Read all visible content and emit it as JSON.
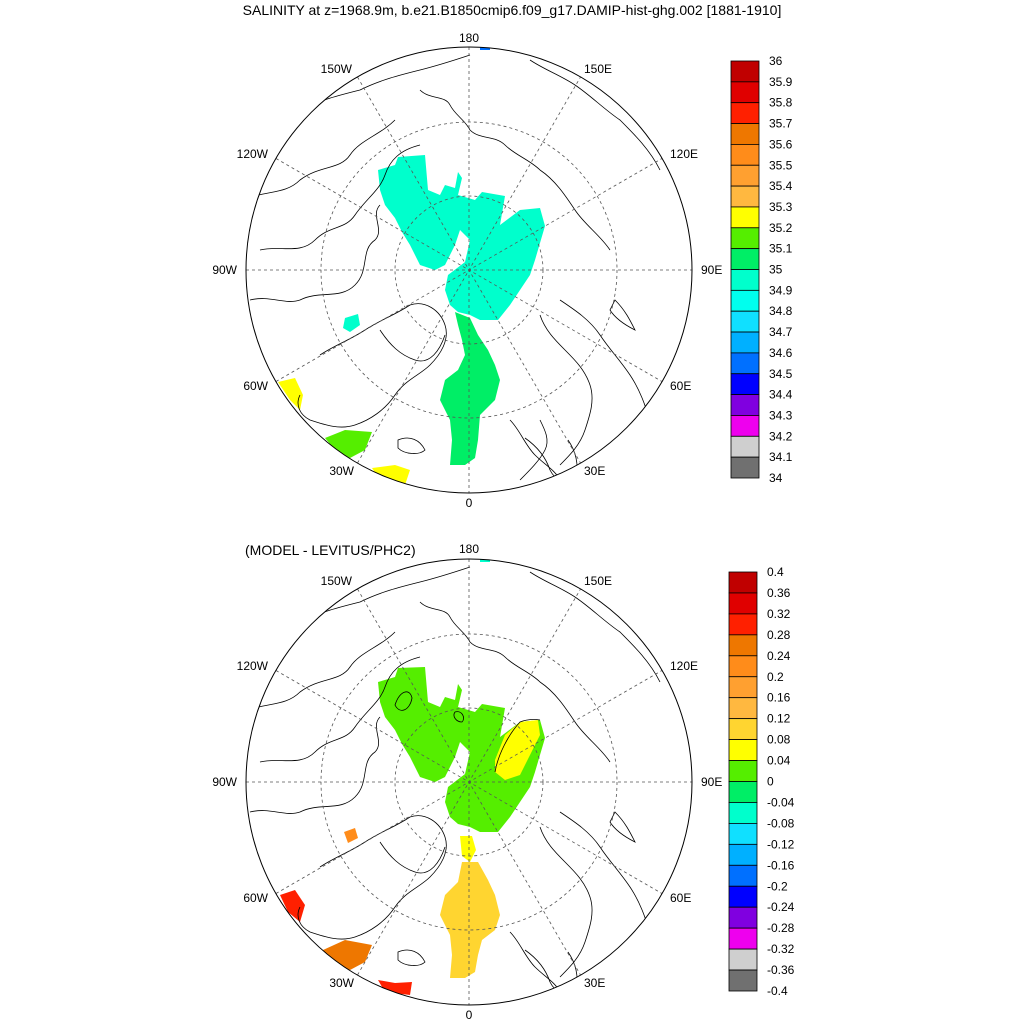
{
  "title": "SALINITY at z=1968.9m, b.e21.B1850cmip6.f09_g17.DAMIP-hist-ghg.002 [1881-1910]",
  "diff_title": "(MODEL - LEVITUS/PHC2)",
  "longitude_labels": {
    "top": "180",
    "bottom": "0",
    "left": "90W",
    "right": "90E",
    "upper_left": "150W",
    "upper_right": "150E",
    "mid_upper_left": "120W",
    "mid_upper_right": "120E",
    "lower_left": "60W",
    "lower_right": "60E",
    "bottom_left": "30W",
    "bottom_right": "30E"
  },
  "colorbar_top": {
    "labels": [
      "36",
      "35.9",
      "35.8",
      "35.7",
      "35.6",
      "35.5",
      "35.4",
      "35.3",
      "35.2",
      "35.1",
      "35",
      "34.9",
      "34.8",
      "34.7",
      "34.6",
      "34.5",
      "34.4",
      "34.3",
      "34.2",
      "34.1",
      "34"
    ],
    "colors": [
      "#c00000",
      "#e00000",
      "#ff2000",
      "#ee7700",
      "#ff8c1a",
      "#ffa030",
      "#ffb840",
      "#ffff00",
      "#55ee00",
      "#00ee66",
      "#00ffcc",
      "#00ffee",
      "#10e0ff",
      "#00b0ff",
      "#0070ff",
      "#0000ff",
      "#8000e0",
      "#ee00ee",
      "#cfcfcf",
      "#707070"
    ]
  },
  "colorbar_bottom": {
    "labels": [
      "0.4",
      "0.36",
      "0.32",
      "0.28",
      "0.24",
      "0.2",
      "0.16",
      "0.12",
      "0.08",
      "0.04",
      "0",
      "-0.04",
      "-0.08",
      "-0.12",
      "-0.16",
      "-0.2",
      "-0.24",
      "-0.28",
      "-0.32",
      "-0.36",
      "-0.4"
    ],
    "colors": [
      "#c00000",
      "#e00000",
      "#ff2000",
      "#ee7700",
      "#ff8c1a",
      "#ffa030",
      "#ffb840",
      "#ffd530",
      "#ffff00",
      "#55ee00",
      "#00ee66",
      "#00ffcc",
      "#10e0ff",
      "#00b0ff",
      "#0070ff",
      "#0000ff",
      "#8000e0",
      "#ee00ee",
      "#cfcfcf",
      "#707070"
    ]
  },
  "field_colors": {
    "top_arctic": "#00ffcc",
    "top_atlantic": "#00ee66",
    "top_yellow": "#ffff00",
    "top_green": "#55ee00",
    "top_blue": "#0070ff",
    "bottom_arctic": "#55ee00",
    "bottom_yellow": "#ffff00",
    "bottom_atlantic": "#ffd530",
    "bottom_red": "#ff2000",
    "bottom_orange": "#ee7700",
    "bottom_small_orange": "#ff8c1a",
    "bottom_cyan": "#00ffcc"
  }
}
